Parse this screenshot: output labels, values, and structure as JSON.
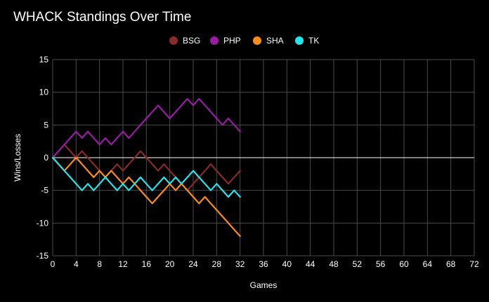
{
  "chart_data": {
    "type": "line",
    "title": "WHACK Standings Over Time",
    "xlabel": "Games",
    "ylabel": "Wins/Losses",
    "xlim": [
      0,
      72
    ],
    "ylim": [
      -15,
      15
    ],
    "xticks": [
      0,
      4,
      8,
      12,
      16,
      20,
      24,
      28,
      32,
      36,
      40,
      44,
      48,
      52,
      56,
      60,
      64,
      68,
      72
    ],
    "yticks": [
      15,
      10,
      5,
      0,
      -5,
      -10,
      -15
    ],
    "grid": true,
    "legend_position": "top-center",
    "series": [
      {
        "name": "BSG",
        "color": "#8b2a2a",
        "x": [
          0,
          1,
          2,
          3,
          4,
          5,
          6,
          7,
          8,
          9,
          10,
          11,
          12,
          13,
          14,
          15,
          16,
          17,
          18,
          19,
          20,
          21,
          22,
          23,
          24,
          25,
          26,
          27,
          28,
          29,
          30,
          31,
          32
        ],
        "y": [
          0,
          1,
          2,
          1,
          0,
          1,
          0,
          -1,
          -2,
          -3,
          -2,
          -1,
          -2,
          -1,
          0,
          1,
          0,
          -1,
          -2,
          -1,
          -2,
          -3,
          -4,
          -5,
          -4,
          -3,
          -2,
          -1,
          -2,
          -3,
          -4,
          -3,
          -2
        ]
      },
      {
        "name": "PHP",
        "color": "#9c1aa8",
        "x": [
          0,
          1,
          2,
          3,
          4,
          5,
          6,
          7,
          8,
          9,
          10,
          11,
          12,
          13,
          14,
          15,
          16,
          17,
          18,
          19,
          20,
          21,
          22,
          23,
          24,
          25,
          26,
          27,
          28,
          29,
          30,
          31,
          32
        ],
        "y": [
          0,
          1,
          2,
          3,
          4,
          3,
          4,
          3,
          2,
          3,
          2,
          3,
          4,
          3,
          4,
          5,
          6,
          7,
          8,
          7,
          6,
          7,
          8,
          9,
          8,
          9,
          8,
          7,
          6,
          5,
          6,
          5,
          4
        ]
      },
      {
        "name": "SHA",
        "color": "#ff8c1a",
        "x": [
          0,
          1,
          2,
          3,
          4,
          5,
          6,
          7,
          8,
          9,
          10,
          11,
          12,
          13,
          14,
          15,
          16,
          17,
          18,
          19,
          20,
          21,
          22,
          23,
          24,
          25,
          26,
          27,
          28,
          29,
          30,
          31,
          32
        ],
        "y": [
          0,
          -1,
          -2,
          -1,
          0,
          -1,
          -2,
          -3,
          -2,
          -3,
          -2,
          -3,
          -4,
          -3,
          -4,
          -5,
          -6,
          -7,
          -6,
          -5,
          -4,
          -5,
          -4,
          -5,
          -6,
          -7,
          -6,
          -7,
          -8,
          -9,
          -10,
          -11,
          -12
        ]
      },
      {
        "name": "TK",
        "color": "#22e6ee",
        "x": [
          0,
          1,
          2,
          3,
          4,
          5,
          6,
          7,
          8,
          9,
          10,
          11,
          12,
          13,
          14,
          15,
          16,
          17,
          18,
          19,
          20,
          21,
          22,
          23,
          24,
          25,
          26,
          27,
          28,
          29,
          30,
          31,
          32
        ],
        "y": [
          0,
          -1,
          -2,
          -3,
          -4,
          -5,
          -4,
          -5,
          -4,
          -3,
          -4,
          -5,
          -4,
          -5,
          -4,
          -3,
          -4,
          -5,
          -4,
          -3,
          -4,
          -3,
          -4,
          -3,
          -2,
          -3,
          -4,
          -5,
          -4,
          -5,
          -6,
          -5,
          -6
        ]
      }
    ]
  }
}
